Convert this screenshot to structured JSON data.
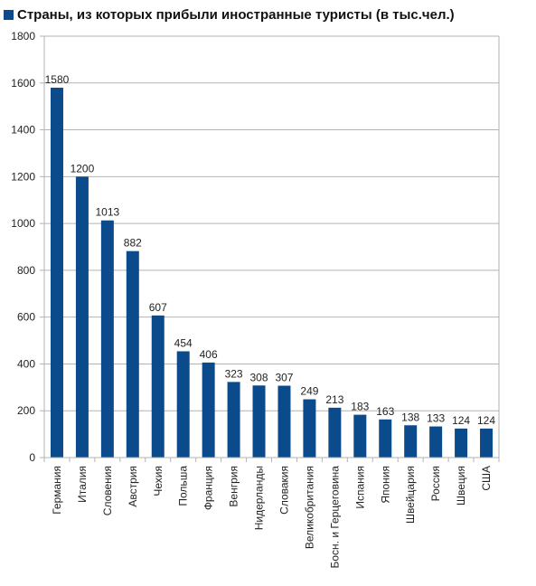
{
  "chart_data": {
    "type": "bar",
    "title": "Страны, из которых прибыли иностранные туристы (в тыс.чел.)",
    "categories": [
      "Германия",
      "Италия",
      "Словения",
      "Австрия",
      "Чехия",
      "Польша",
      "Франция",
      "Венгрия",
      "Нидерланды",
      "Словакия",
      "Великобритания",
      "Босн. и Герцеговина",
      "Испания",
      "Япония",
      "Швейцария",
      "Россия",
      "Швеция",
      "США"
    ],
    "values": [
      1580,
      1200,
      1013,
      882,
      607,
      454,
      406,
      323,
      308,
      307,
      249,
      213,
      183,
      163,
      138,
      133,
      124,
      124
    ],
    "ylim": [
      0,
      1800
    ],
    "yticks": [
      0,
      200,
      400,
      600,
      800,
      1000,
      1200,
      1400,
      1600,
      1800
    ],
    "grid": true,
    "legend": "top-left",
    "bar_color": "#0b4a8b"
  }
}
